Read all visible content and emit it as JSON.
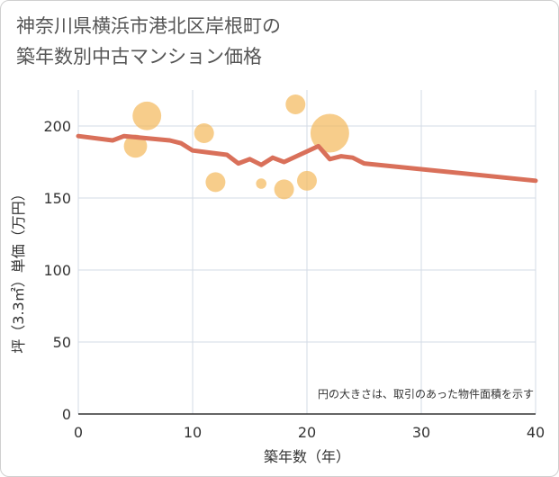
{
  "chart_data": {
    "type": "scatter",
    "title_line1": "神奈川県横浜市港北区岸根町の",
    "title_line2": "築年数別中古マンション価格",
    "xlabel": "築年数（年）",
    "ylabel": "坪（3.3㎡）単価（万円）",
    "note": "円の大きさは、取引のあった物件面積を示す",
    "xlim": [
      0,
      40
    ],
    "ylim": [
      0,
      225
    ],
    "x_ticks": [
      "0",
      "10",
      "20",
      "30",
      "40"
    ],
    "y_ticks": [
      "0",
      "50",
      "100",
      "150",
      "200"
    ],
    "x_tick_values": [
      0,
      10,
      20,
      30,
      40
    ],
    "y_tick_values": [
      0,
      50,
      100,
      150,
      200
    ],
    "grid": true,
    "colors": {
      "bubble": "#f3b85a",
      "line": "#d9705a",
      "grid": "#d3dbe6",
      "text": "#333333"
    },
    "bubbles": [
      {
        "x": 5,
        "y": 186,
        "size": 3
      },
      {
        "x": 6,
        "y": 207,
        "size": 5
      },
      {
        "x": 11,
        "y": 195,
        "size": 2
      },
      {
        "x": 12,
        "y": 161,
        "size": 2
      },
      {
        "x": 16,
        "y": 160,
        "size": 0.3
      },
      {
        "x": 18,
        "y": 156,
        "size": 2
      },
      {
        "x": 19,
        "y": 215,
        "size": 2
      },
      {
        "x": 20,
        "y": 162,
        "size": 2
      },
      {
        "x": 22,
        "y": 195,
        "size": 10
      }
    ],
    "trend": {
      "x": [
        0,
        3,
        4,
        8,
        9,
        10,
        13,
        14,
        15,
        16,
        17,
        18,
        21,
        22,
        23,
        24,
        25,
        40
      ],
      "y": [
        193,
        190,
        193,
        190,
        188,
        183,
        180,
        174,
        177,
        173,
        178,
        175,
        186,
        177,
        179,
        178,
        174,
        162
      ]
    }
  }
}
